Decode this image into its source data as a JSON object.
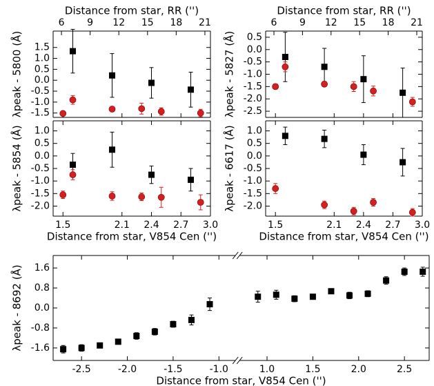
{
  "chart_data": [
    {
      "type": "scatter",
      "ylabel": "λpeak - 5800 (Å)",
      "x2label": "Distance from star, RR ('')",
      "xlim": [
        1.4,
        3.0
      ],
      "xticks": [
        1.5,
        2.1,
        2.4,
        2.7,
        {
          "value": 3,
          "label": "3.0"
        }
      ],
      "show_xtick_labels": false,
      "x2lim": [
        5.13,
        21.58
      ],
      "x2ticks": [
        6,
        9,
        12,
        15,
        18,
        21
      ],
      "ylim": [
        -1.7,
        2.25
      ],
      "yticks": [
        -1.5,
        {
          "value": -1,
          "label": "-1.0"
        },
        -0.5,
        {
          "value": 0,
          "label": "0.0"
        },
        0.5,
        {
          "value": 1,
          "label": "1.0"
        },
        1.5
      ],
      "series": [
        {
          "color": "#000000",
          "marker": "square",
          "x": [
            1.6,
            2.0,
            2.4,
            2.8
          ],
          "values": [
            1.33,
            0.22,
            -0.12,
            -0.43
          ],
          "errors": [
            1.0,
            1.0,
            0.7,
            0.8
          ]
        },
        {
          "color": "#d62020",
          "marker": "circle",
          "x": [
            1.5,
            1.6,
            2.0,
            2.3,
            2.5,
            2.9
          ],
          "values": [
            -1.52,
            -0.9,
            -1.32,
            -1.3,
            -1.43,
            -1.5
          ],
          "errors": [
            0.08,
            0.2,
            0.1,
            0.25,
            0.17,
            0.17
          ]
        }
      ]
    },
    {
      "type": "scatter",
      "ylabel": "λpeak - 5827 (Å)",
      "x2label": "Distance from star, RR ('')",
      "xlim": [
        1.4,
        3.0
      ],
      "xticks": [
        1.5,
        2.1,
        2.4,
        2.7,
        {
          "value": 3,
          "label": "3.0"
        }
      ],
      "show_xtick_labels": false,
      "x2lim": [
        5.13,
        21.58
      ],
      "x2ticks": [
        6,
        9,
        12,
        15,
        18,
        21
      ],
      "ylim": [
        -2.75,
        0.75
      ],
      "yticks": [
        -2.5,
        {
          "value": -2,
          "label": "-2.0"
        },
        -1.5,
        {
          "value": -1,
          "label": "-1.0"
        },
        -0.5,
        {
          "value": 0,
          "label": "0.0"
        },
        0.5
      ],
      "series": [
        {
          "color": "#000000",
          "marker": "square",
          "x": [
            1.6,
            2.0,
            2.4,
            2.8
          ],
          "values": [
            -0.3,
            -0.7,
            -1.2,
            -1.75
          ],
          "errors": [
            1.0,
            0.75,
            0.95,
            1.0
          ]
        },
        {
          "color": "#d62020",
          "marker": "circle",
          "x": [
            1.5,
            1.6,
            2.0,
            2.3,
            2.5,
            2.9
          ],
          "values": [
            -1.5,
            -0.7,
            -1.4,
            -1.5,
            -1.68,
            -2.12
          ],
          "errors": [
            0.1,
            0.2,
            0.1,
            0.2,
            0.2,
            0.18
          ]
        }
      ]
    },
    {
      "type": "scatter",
      "ylabel": "λpeak - 5854 (Å)",
      "xlabel": "Distance from star, V854 Cen ('')",
      "xlim": [
        1.4,
        3.0
      ],
      "xticks": [
        1.5,
        2.1,
        2.4,
        2.7,
        {
          "value": 3,
          "label": "3.0"
        }
      ],
      "show_xtick_labels": true,
      "ylim": [
        -2.4,
        1.4
      ],
      "yticks": [
        {
          "value": -2,
          "label": "-2.0"
        },
        -1.5,
        {
          "value": -1,
          "label": "-1.0"
        },
        -0.5,
        {
          "value": 0,
          "label": "0.0"
        },
        0.5,
        {
          "value": 1,
          "label": "1.0"
        }
      ],
      "series": [
        {
          "color": "#000000",
          "marker": "square",
          "x": [
            1.6,
            2.0,
            2.4,
            2.8
          ],
          "values": [
            -0.35,
            0.25,
            -0.75,
            -0.95
          ],
          "errors": [
            0.45,
            0.7,
            0.35,
            0.45
          ]
        },
        {
          "color": "#d62020",
          "marker": "circle",
          "x": [
            1.5,
            1.6,
            2.0,
            2.3,
            2.5,
            2.9
          ],
          "values": [
            -1.55,
            -0.75,
            -1.6,
            -1.63,
            -1.65,
            -1.85
          ],
          "errors": [
            0.15,
            0.2,
            0.17,
            0.15,
            0.4,
            0.3
          ]
        }
      ]
    },
    {
      "type": "scatter",
      "ylabel": "λpeak - 6617 (Å)",
      "xlabel": "Distance from star, V854 Cen ('')",
      "xlim": [
        1.4,
        3.0
      ],
      "xticks": [
        1.5,
        2.1,
        2.4,
        2.7,
        {
          "value": 3,
          "label": "3.0"
        }
      ],
      "show_xtick_labels": true,
      "ylim": [
        -2.4,
        1.4
      ],
      "yticks": [
        {
          "value": -2,
          "label": "-2.0"
        },
        -1.5,
        {
          "value": -1,
          "label": "-1.0"
        },
        -0.5,
        {
          "value": 0,
          "label": "0.0"
        },
        0.5,
        {
          "value": 1,
          "label": "1.0"
        }
      ],
      "series": [
        {
          "color": "#000000",
          "marker": "square",
          "x": [
            1.6,
            2.0,
            2.4,
            2.8
          ],
          "values": [
            0.8,
            0.68,
            0.05,
            -0.25
          ],
          "errors": [
            0.35,
            0.35,
            0.4,
            0.55
          ]
        },
        {
          "color": "#d62020",
          "marker": "circle",
          "x": [
            1.5,
            2.0,
            2.3,
            2.5,
            2.9
          ],
          "values": [
            -1.3,
            -1.95,
            -2.2,
            -1.85,
            -2.25
          ],
          "errors": [
            0.2,
            0.15,
            0.15,
            0.15,
            0.15
          ]
        }
      ]
    },
    {
      "type": "scatter",
      "ylabel": "λpeak - 8692 (Å)",
      "xlabel": "Distance from star, V854 Cen ('')",
      "xlim": [
        [
          -2.81,
          -0.82
        ],
        [
          0.7,
          2.77
        ]
      ],
      "xticks": [
        -2.5,
        {
          "value": -2,
          "label": "-2.0"
        },
        -1.5,
        {
          "value": -1,
          "label": "-1.0"
        },
        {
          "value": 1,
          "label": "1.0"
        },
        1.5,
        {
          "value": 2,
          "label": "2.0"
        },
        2.5
      ],
      "show_xtick_labels": true,
      "ylim": [
        -2.1,
        2.1
      ],
      "yticks": [
        -1.6,
        -0.8,
        {
          "value": 0,
          "label": "0.0"
        },
        0.8,
        1.6
      ],
      "series": [
        {
          "color": "#000000",
          "marker": "square",
          "x": [
            -2.7,
            -2.5,
            -2.3,
            -2.1,
            -1.9,
            -1.7,
            -1.5,
            -1.3,
            -1.1,
            0.9,
            1.1,
            1.3,
            1.5,
            1.7,
            1.9,
            2.1,
            2.3,
            2.5,
            2.7
          ],
          "values": [
            -1.65,
            -1.6,
            -1.5,
            -1.35,
            -1.12,
            -0.95,
            -0.65,
            -0.48,
            0.15,
            0.45,
            0.53,
            0.37,
            0.45,
            0.67,
            0.5,
            0.57,
            1.1,
            1.45,
            1.45
          ],
          "errors": [
            0.15,
            0.13,
            0.1,
            0.1,
            0.13,
            0.13,
            0.12,
            0.2,
            0.25,
            0.22,
            0.18,
            0.12,
            0.1,
            0.1,
            0.13,
            0.12,
            0.15,
            0.15,
            0.18
          ]
        }
      ]
    }
  ]
}
